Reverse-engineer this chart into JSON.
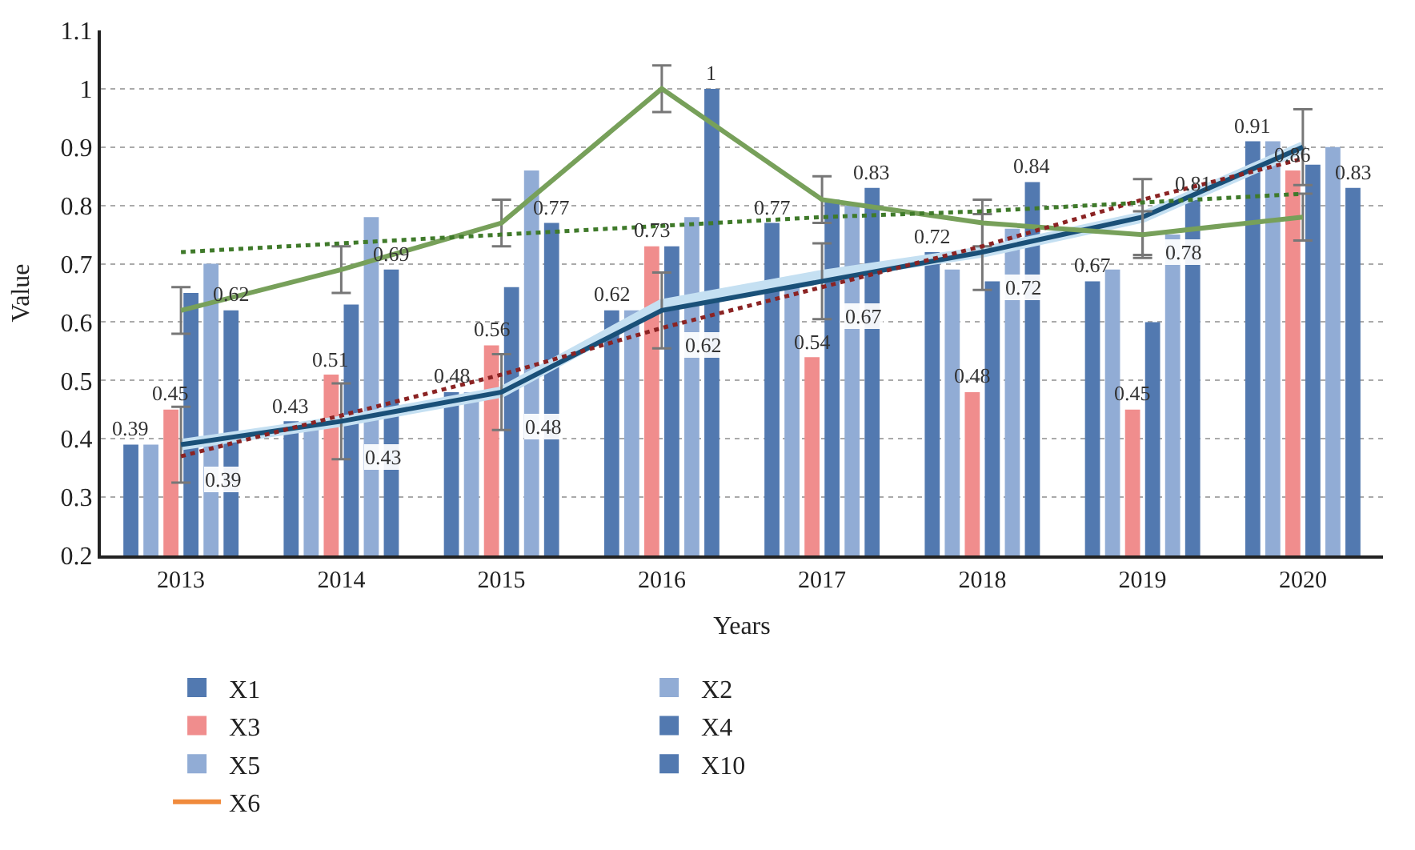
{
  "chart_data": {
    "type": "bar",
    "xlabel": "Years",
    "ylabel": "Value",
    "categories": [
      "2013",
      "2014",
      "2015",
      "2016",
      "2017",
      "2018",
      "2019",
      "2020"
    ],
    "ylim": [
      0.2,
      1.1
    ],
    "yticks": [
      0.2,
      0.3,
      0.4,
      0.5,
      0.6,
      0.7,
      0.8,
      0.9,
      1,
      1.1
    ],
    "grid": "y",
    "legend": "bottom",
    "series": [
      {
        "name": "X1",
        "color": "#5279b0",
        "values": [
          0.39,
          0.43,
          0.48,
          0.62,
          0.77,
          0.72,
          0.67,
          0.91
        ],
        "value_labels": [
          "0.39",
          "0.43",
          "0.48",
          "0.62",
          "0.77",
          "0.72",
          "0.67",
          "0.91"
        ]
      },
      {
        "name": "X2",
        "color": "#91acd5",
        "values": [
          0.39,
          0.42,
          0.48,
          0.62,
          0.66,
          0.69,
          0.69,
          0.91
        ]
      },
      {
        "name": "X3",
        "color": "#f08d8d",
        "values": [
          0.45,
          0.51,
          0.56,
          0.73,
          0.54,
          0.48,
          0.45,
          0.86
        ],
        "value_labels": [
          "0.45",
          "0.51",
          "0.56",
          "0.73",
          "0.54",
          "0.48",
          "0.45",
          "0.86"
        ]
      },
      {
        "name": "X4",
        "color": "#5279b0",
        "values": [
          0.65,
          0.63,
          0.66,
          0.73,
          0.81,
          0.67,
          0.6,
          0.87
        ]
      },
      {
        "name": "X5",
        "color": "#91acd5",
        "values": [
          0.7,
          0.78,
          0.86,
          0.78,
          0.8,
          0.76,
          0.75,
          0.9
        ]
      },
      {
        "name": "X10",
        "color": "#5279b0",
        "values": [
          0.62,
          0.69,
          0.77,
          1,
          0.83,
          0.84,
          0.81,
          0.83
        ],
        "value_labels": [
          "0.62",
          "0.69",
          "0.77",
          "1",
          "0.83",
          "0.84",
          "0.81",
          "0.83"
        ]
      },
      {
        "name": "X6",
        "type": "line",
        "color": "#f08a3c",
        "values": [
          null,
          null,
          null,
          null,
          null,
          null,
          null,
          null
        ]
      },
      {
        "type": "line",
        "color": "#c5e0f2",
        "values": [
          0.39,
          0.43,
          0.48,
          0.63,
          0.68,
          0.72,
          0.78,
          0.9
        ]
      },
      {
        "type": "line",
        "color": "#1a5078",
        "values": [
          0.39,
          0.43,
          0.48,
          0.62,
          0.67,
          0.72,
          0.78,
          0.9
        ],
        "errors": [
          0.065,
          0.065,
          0.065,
          0.065,
          0.065,
          0.065,
          0.065,
          0.065
        ],
        "value_labels": [
          "0.39",
          "0.43",
          "0.48",
          "0.62",
          "0.67",
          "0.72",
          "0.78",
          null
        ]
      },
      {
        "type": "line",
        "color": "#77a05a",
        "values": [
          0.62,
          0.69,
          0.77,
          1,
          0.81,
          0.77,
          0.75,
          0.78
        ],
        "errors": [
          0.04,
          0.04,
          0.04,
          0.04,
          0.04,
          0.04,
          0.04,
          0.04
        ]
      },
      {
        "type": "line",
        "color": "#8b2323",
        "line_style": "dotted",
        "values": [
          0.37,
          0.44,
          0.51,
          0.59,
          0.66,
          0.73,
          0.81,
          0.88
        ]
      },
      {
        "type": "line",
        "color": "#3f7a2a",
        "line_style": "dotted",
        "values": [
          0.72,
          0.735,
          0.75,
          0.765,
          0.78,
          0.79,
          0.805,
          0.82
        ]
      }
    ]
  }
}
